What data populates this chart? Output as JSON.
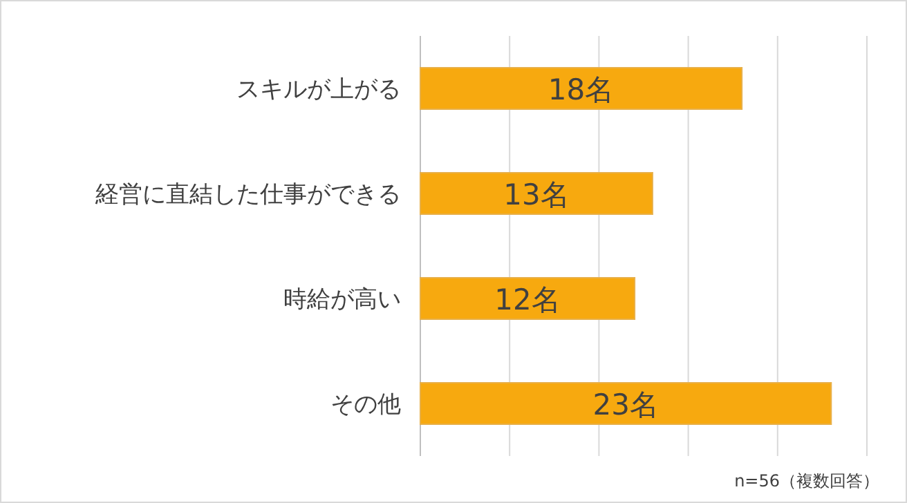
{
  "chart_data": {
    "type": "bar",
    "orientation": "horizontal",
    "categories": [
      "スキルが上がる",
      "経営に直結した仕事ができる",
      "時給が高い",
      "その他"
    ],
    "values": [
      18,
      13,
      12,
      23
    ],
    "value_labels": [
      "18名",
      "13名",
      "12名",
      "23名"
    ],
    "color": "#f7a90f",
    "xlim": [
      0,
      25
    ],
    "xticks": [
      {
        "value": 0,
        "label": null
      },
      {
        "value": 5,
        "label": null
      },
      {
        "value": 10,
        "label": null
      },
      {
        "value": 15,
        "label": null
      },
      {
        "value": 20,
        "label": null
      },
      {
        "value": 25,
        "label": null
      }
    ],
    "grid": "x",
    "tick_labels": "y",
    "annotations": [
      "n=56（複数回答）"
    ]
  }
}
